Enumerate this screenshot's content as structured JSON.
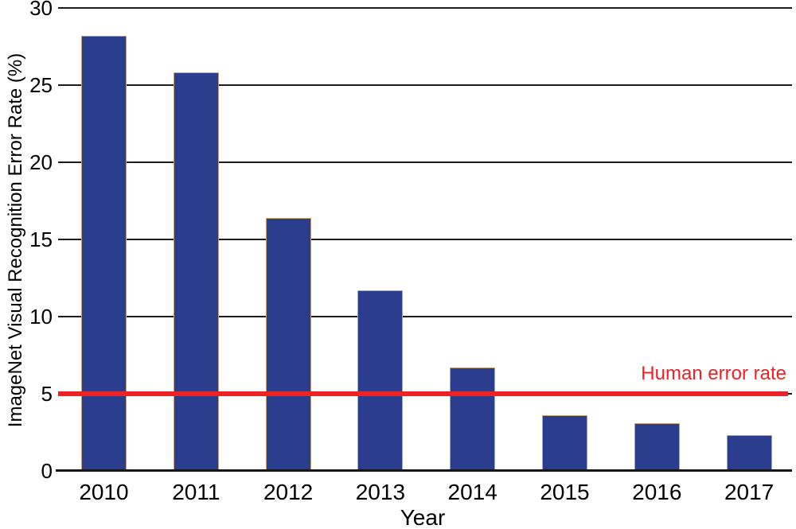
{
  "chart_data": {
    "type": "bar",
    "title": "",
    "xlabel": "Year",
    "ylabel": "ImageNet Visual Recognition Error Rate (%)",
    "categories": [
      "2010",
      "2011",
      "2012",
      "2013",
      "2014",
      "2015",
      "2016",
      "2017"
    ],
    "values": [
      28.2,
      25.8,
      16.4,
      11.7,
      6.7,
      3.6,
      3.1,
      2.3
    ],
    "ylim": [
      0,
      30
    ],
    "yticks": [
      0,
      5,
      10,
      15,
      20,
      25,
      30
    ],
    "grid": true,
    "legend": "none",
    "bar_color": "#2b3e8e",
    "bar_border_color": "#c2a07a",
    "axis_color": "#141414",
    "text_color": "#000000",
    "reference_line": {
      "value": 5,
      "label": "Human error rate",
      "color": "#ed2224"
    }
  }
}
